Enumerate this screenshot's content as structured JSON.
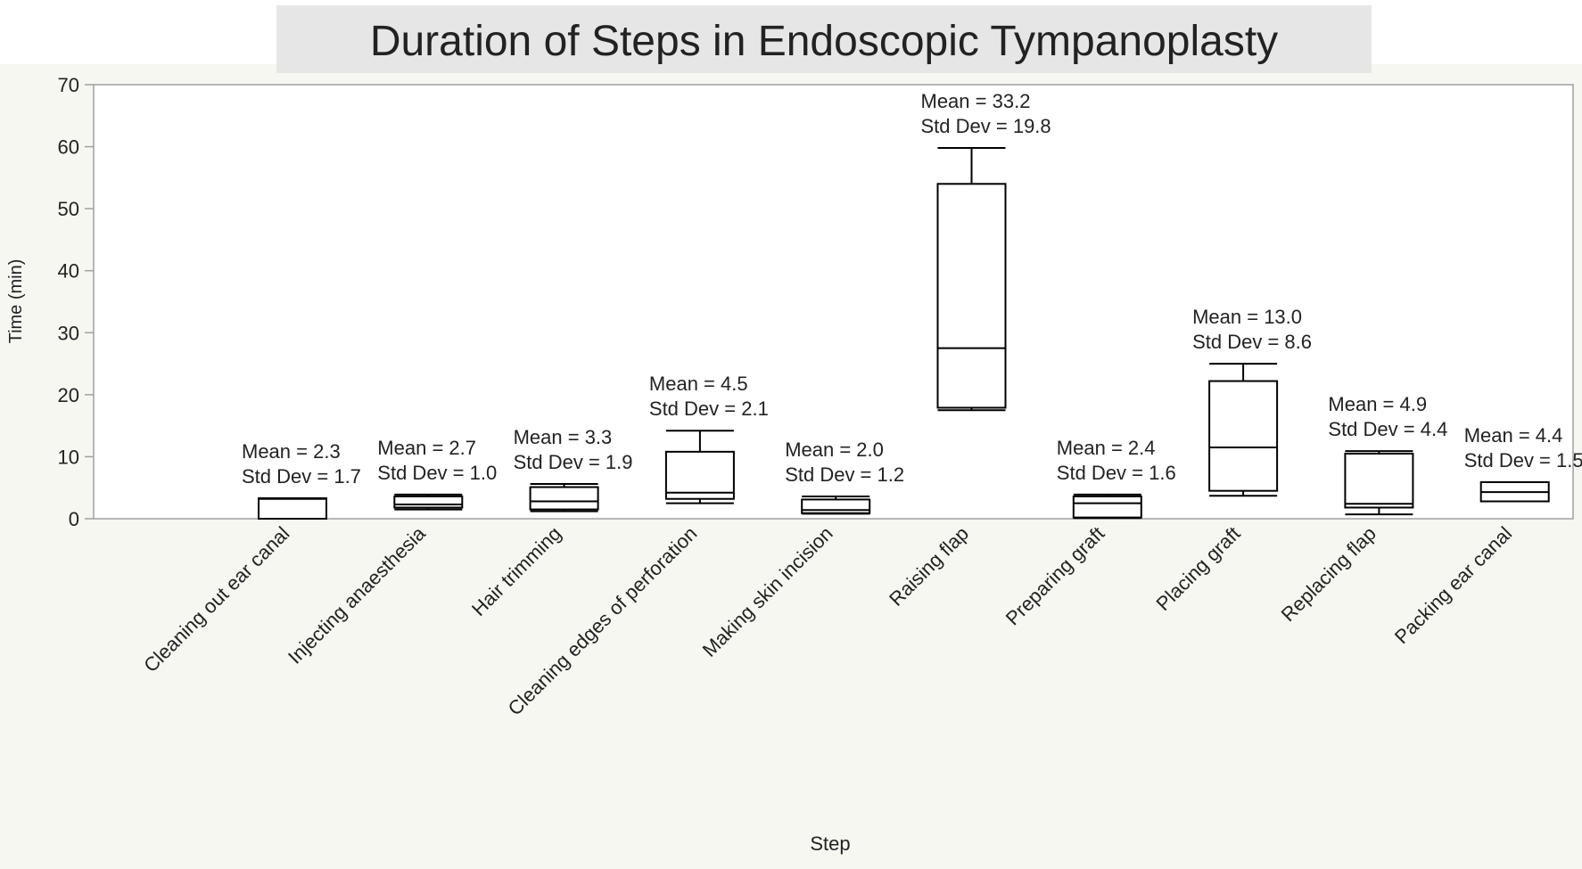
{
  "chart_data": {
    "type": "box",
    "title": "Duration of Steps in Endoscopic Tympanoplasty",
    "xlabel": "Step",
    "ylabel": "Time (min)",
    "ylim": [
      0,
      70
    ],
    "yticks": [
      "0",
      "10",
      "20",
      "30",
      "40",
      "50",
      "60",
      "70"
    ],
    "grid": false,
    "colors": {
      "title_band": "#e6e6e6",
      "plot_area": "#ffffff",
      "page_background": "#f7f7f2",
      "box_stroke": "#000000",
      "axis_stroke": "#a0a0a0"
    },
    "categories": [
      "Cleaning out ear canal",
      "Injecting anaesthesia",
      "Hair trimming",
      "Cleaning edges of perforation",
      "Making skin incision",
      "Raising flap",
      "Preparing graft",
      "Placing graft",
      "Replacing flap",
      "Packing ear canal"
    ],
    "boxes": [
      {
        "min": 0,
        "q1": 0,
        "median": 3.2,
        "q3": 3.3,
        "max": 3.3
      },
      {
        "min": 1.5,
        "q1": 1.8,
        "median": 2.3,
        "q3": 3.6,
        "max": 3.9
      },
      {
        "min": 1.2,
        "q1": 1.5,
        "median": 2.8,
        "q3": 5.1,
        "max": 5.6
      },
      {
        "min": 2.5,
        "q1": 3.2,
        "median": 4.2,
        "q3": 10.8,
        "max": 14.2
      },
      {
        "min": 0.8,
        "q1": 0.9,
        "median": 1.4,
        "q3": 3.1,
        "max": 3.6
      },
      {
        "min": 17.5,
        "q1": 17.9,
        "median": 27.5,
        "q3": 54.0,
        "max": 59.8
      },
      {
        "min": 0.1,
        "q1": 0.2,
        "median": 2.5,
        "q3": 3.6,
        "max": 3.9
      },
      {
        "min": 3.7,
        "q1": 4.5,
        "median": 11.5,
        "q3": 22.2,
        "max": 25.0
      },
      {
        "min": 0.7,
        "q1": 1.8,
        "median": 2.4,
        "q3": 10.5,
        "max": 10.9
      },
      {
        "min": 2.8,
        "q1": 2.8,
        "median": 4.3,
        "q3": 5.9,
        "max": 5.9
      }
    ],
    "annotations": [
      {
        "mean": "Mean = 2.3",
        "sd": "Std Dev = 1.7"
      },
      {
        "mean": "Mean = 2.7",
        "sd": "Std Dev = 1.0"
      },
      {
        "mean": "Mean = 3.3",
        "sd": "Std Dev = 1.9"
      },
      {
        "mean": "Mean = 4.5",
        "sd": "Std Dev = 2.1"
      },
      {
        "mean": "Mean = 2.0",
        "sd": "Std Dev = 1.2"
      },
      {
        "mean": "Mean = 33.2",
        "sd": "Std Dev = 19.8"
      },
      {
        "mean": "Mean = 2.4",
        "sd": "Std Dev = 1.6"
      },
      {
        "mean": "Mean = 13.0",
        "sd": "Std Dev = 8.6"
      },
      {
        "mean": "Mean = 4.9",
        "sd": "Std Dev = 4.4"
      },
      {
        "mean": "Mean = 4.4",
        "sd": "Std Dev = 1.5"
      }
    ]
  }
}
